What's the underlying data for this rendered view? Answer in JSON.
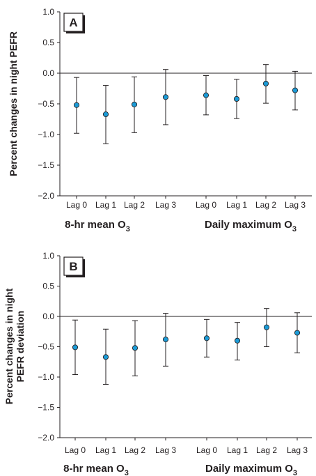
{
  "chart_data": [
    {
      "type": "scatter",
      "panel_label": "A",
      "ylabel": "Percent changes in night PEFR",
      "ylabel_lines": [
        "Percent changes in night PEFR"
      ],
      "ylim": [
        -2.0,
        1.0
      ],
      "yticks": [
        "1.0",
        "0.5",
        "0.0",
        "-0.5",
        "-1.0",
        "-1.5",
        "-2.0"
      ],
      "ytick_values": [
        1.0,
        0.5,
        0.0,
        -0.5,
        -1.0,
        -1.5,
        -2.0
      ],
      "reference_line": 0.0,
      "grid": false,
      "error_bars": true,
      "marker_color": "#1b9bd7",
      "categories": [
        "Lag 0",
        "Lag 1",
        "Lag 2",
        "Lag 3",
        "Lag 0",
        "Lag 1",
        "Lag 2",
        "Lag 3"
      ],
      "groups": [
        {
          "label": "8-hr mean O",
          "subscript": "3",
          "range": [
            0,
            3
          ]
        },
        {
          "label": "Daily maximum O",
          "subscript": "3",
          "range": [
            4,
            7
          ]
        }
      ],
      "values": [
        -0.52,
        -0.67,
        -0.51,
        -0.39,
        -0.36,
        -0.42,
        -0.17,
        -0.28
      ],
      "lower": [
        -0.98,
        -1.15,
        -0.97,
        -0.84,
        -0.68,
        -0.74,
        -0.49,
        -0.6
      ],
      "upper": [
        -0.07,
        -0.2,
        -0.06,
        0.06,
        -0.04,
        -0.1,
        0.14,
        0.03
      ]
    },
    {
      "type": "scatter",
      "panel_label": "B",
      "ylabel": "Percent changes in night PEFR deviation",
      "ylabel_lines": [
        "Percent changes in night",
        "PEFR deviation"
      ],
      "ylim": [
        -2.0,
        1.0
      ],
      "yticks": [
        "1.0",
        "0.5",
        "0.0",
        "-0.5",
        "-1.0",
        "-1.5",
        "-2.0"
      ],
      "ytick_values": [
        1.0,
        0.5,
        0.0,
        -0.5,
        -1.0,
        -1.5,
        -2.0
      ],
      "reference_line": 0.0,
      "grid": false,
      "error_bars": true,
      "marker_color": "#1b9bd7",
      "categories": [
        "Lag 0",
        "Lag 1",
        "Lag 2",
        "Lag 3",
        "Lag 0",
        "Lag 1",
        "Lag 2",
        "Lag 3"
      ],
      "groups": [
        {
          "label": "8-hr mean O",
          "subscript": "3",
          "range": [
            0,
            3
          ]
        },
        {
          "label": "Daily maximum O",
          "subscript": "3",
          "range": [
            4,
            7
          ]
        }
      ],
      "values": [
        -0.51,
        -0.67,
        -0.52,
        -0.38,
        -0.36,
        -0.4,
        -0.18,
        -0.27
      ],
      "lower": [
        -0.96,
        -1.12,
        -0.98,
        -0.82,
        -0.67,
        -0.72,
        -0.5,
        -0.6
      ],
      "upper": [
        -0.06,
        -0.21,
        -0.07,
        0.05,
        -0.05,
        -0.1,
        0.13,
        0.06
      ]
    }
  ]
}
